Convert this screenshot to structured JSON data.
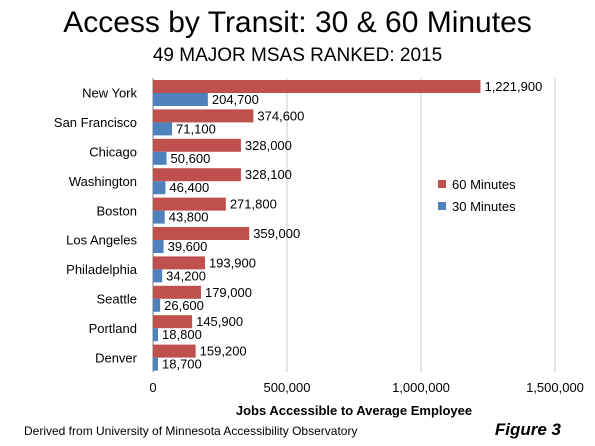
{
  "title": "Access by Transit: 30 & 60 Minutes",
  "subtitle": "49 MAJOR MSAS RANKED: 2015",
  "source": "Derived from University of Minnesota Accessibility Observatory",
  "figure_label": "Figure 3",
  "colors": {
    "sixty": "#c0504d",
    "thirty": "#4f81bd",
    "grid": "#c8c8c8"
  },
  "chart_data": {
    "type": "bar",
    "orientation": "horizontal",
    "categories": [
      "New York",
      "San Francisco",
      "Chicago",
      "Washington",
      "Boston",
      "Los Angeles",
      "Philadelphia",
      "Seattle",
      "Portland",
      "Denver"
    ],
    "series": [
      {
        "name": "60 Minutes",
        "values": [
          1221900,
          374600,
          328000,
          328100,
          271800,
          359000,
          193900,
          179000,
          145900,
          159200
        ],
        "labels": [
          "1,221,900",
          "374,600",
          "328,000",
          "328,100",
          "271,800",
          "359,000",
          "193,900",
          "179,000",
          "145,900",
          "159,200"
        ]
      },
      {
        "name": "30 Minutes",
        "values": [
          204700,
          71100,
          50600,
          46400,
          43800,
          39600,
          34200,
          26600,
          18800,
          18700
        ],
        "labels": [
          "204,700",
          "71,100",
          "50,600",
          "46,400",
          "43,800",
          "39,600",
          "34,200",
          "26,600",
          "18,800",
          "18,700"
        ]
      }
    ],
    "xlim": [
      0,
      1500000
    ],
    "x_ticks": [
      0,
      500000,
      1000000,
      1500000
    ],
    "x_tick_labels": [
      "0",
      "500,000",
      "1,000,000",
      "1,500,000"
    ],
    "xlabel": "Jobs Accessible to Average Employee",
    "ylabel": "",
    "grid": true,
    "legend_position": "right"
  }
}
